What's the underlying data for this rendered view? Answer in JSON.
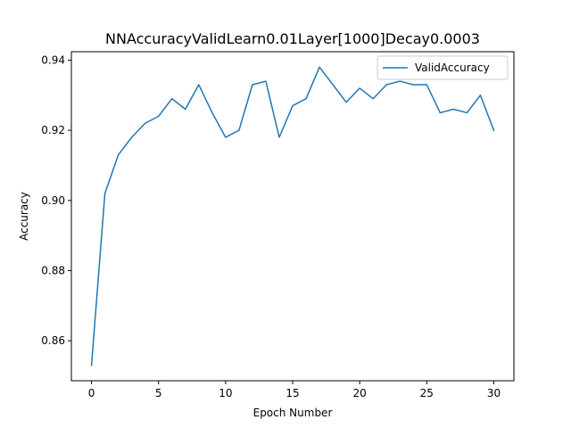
{
  "chart_data": {
    "type": "line",
    "title": "NNAccuracyValidLearn0.01Layer[1000]Decay0.0003",
    "xlabel": "Epoch Number",
    "ylabel": "Accuracy",
    "xlim": [
      -1.5,
      31.5
    ],
    "ylim": [
      0.8486,
      0.9424
    ],
    "xticks": [
      0,
      5,
      10,
      15,
      20,
      25,
      30
    ],
    "yticks": [
      0.86,
      0.88,
      0.9,
      0.92,
      0.94
    ],
    "ytick_labels": [
      "0.86",
      "0.88",
      "0.90",
      "0.92",
      "0.94"
    ],
    "grid": false,
    "legend_position": "top-right",
    "series": [
      {
        "name": "ValidAccuracy",
        "color": "#1f77b4",
        "x": [
          0,
          1,
          2,
          3,
          4,
          5,
          6,
          7,
          8,
          9,
          10,
          11,
          12,
          13,
          14,
          15,
          16,
          17,
          18,
          19,
          20,
          21,
          22,
          23,
          24,
          25,
          26,
          27,
          28,
          29,
          30
        ],
        "values": [
          0.853,
          0.902,
          0.913,
          0.918,
          0.922,
          0.924,
          0.929,
          0.926,
          0.933,
          0.925,
          0.918,
          0.92,
          0.933,
          0.934,
          0.918,
          0.927,
          0.929,
          0.938,
          0.933,
          0.928,
          0.932,
          0.929,
          0.933,
          0.934,
          0.933,
          0.933,
          0.925,
          0.926,
          0.925,
          0.93,
          0.92
        ]
      }
    ]
  }
}
